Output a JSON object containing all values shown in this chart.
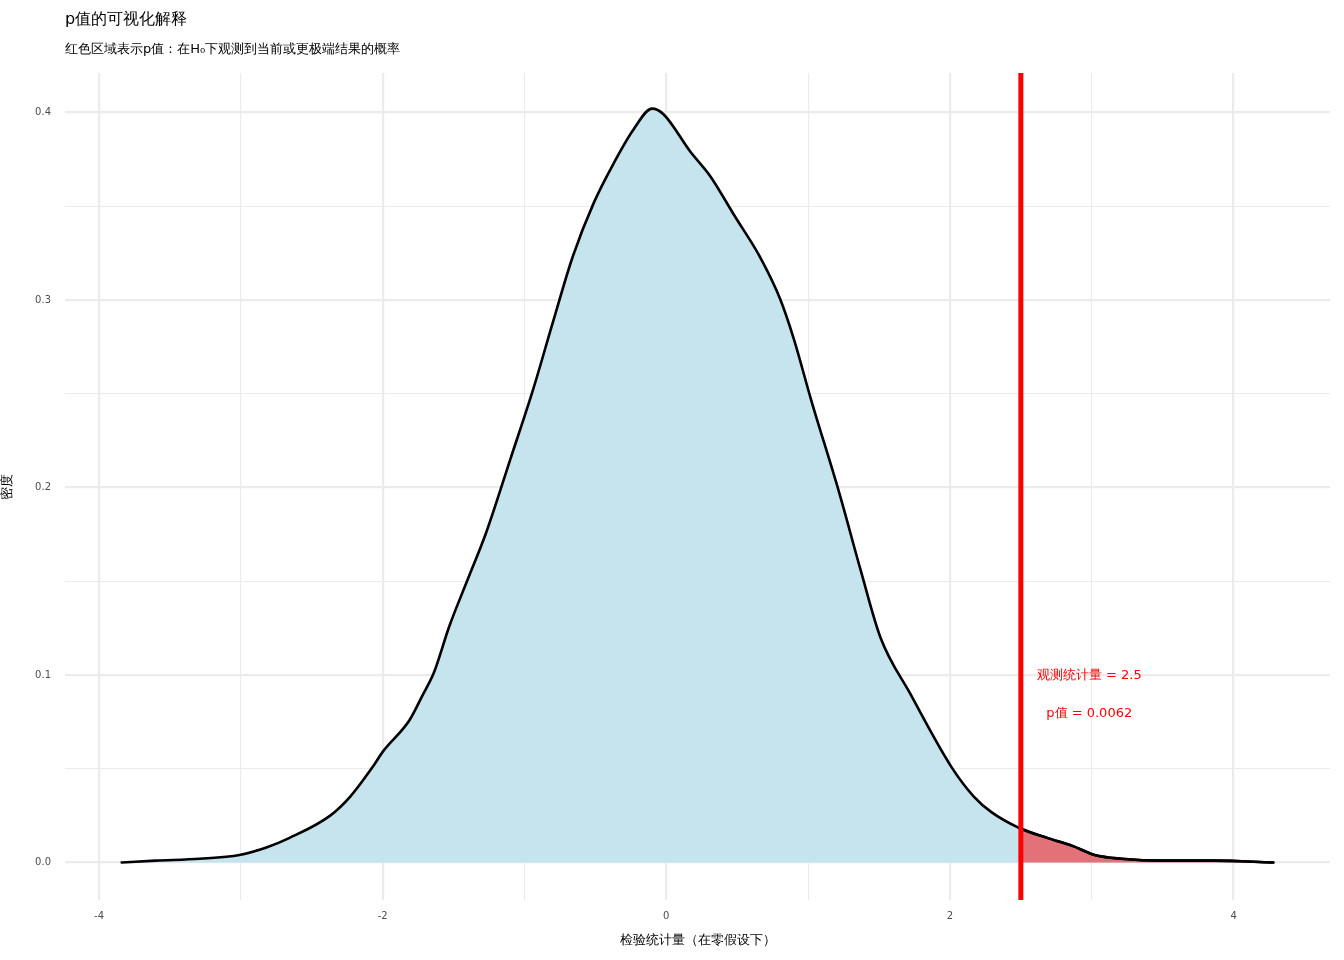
{
  "chart_data": {
    "type": "area",
    "title": "p值的可视化解释",
    "subtitle": "红色区域表示p值：在H₀下观测到当前或更极端结果的概率",
    "xlabel": "检验统计量（在零假设下）",
    "ylabel": "密度",
    "series": [
      {
        "color": "#e27277",
        "x": [
          2.5,
          2.69,
          2.86,
          3.02,
          3.21,
          3.51,
          3.87,
          4.28
        ],
        "values": [
          0.018,
          0.013,
          0.009,
          0.004,
          0.002,
          0.001,
          0.001,
          0
        ]
      },
      {
        "color": "#c6e4ee",
        "x": [
          -3.84,
          -3.6,
          -3.29,
          -3.01,
          -2.82,
          -2.66,
          -2.37,
          -2.23,
          -2.07,
          -2.0,
          -1.81,
          -1.72,
          -1.64,
          -1.53,
          -1.4,
          -1.27,
          -1.1,
          -0.94,
          -0.8,
          -0.66,
          -0.51,
          -0.37,
          -0.23,
          -0.1,
          -0.02,
          0.17,
          0.31,
          0.48,
          0.66,
          0.8,
          0.9,
          1.02,
          1.22,
          1.37,
          1.51,
          1.72,
          2.01,
          2.17,
          2.29,
          2.5,
          2.69,
          2.86,
          3.02,
          3.21,
          3.51,
          3.87,
          4.28
        ],
        "values": [
          0,
          0.001,
          0.002,
          0.004,
          0.008,
          0.013,
          0.025,
          0.035,
          0.051,
          0.059,
          0.076,
          0.089,
          0.101,
          0.126,
          0.151,
          0.176,
          0.215,
          0.252,
          0.288,
          0.323,
          0.352,
          0.373,
          0.391,
          0.402,
          0.399,
          0.379,
          0.366,
          0.345,
          0.323,
          0.301,
          0.279,
          0.247,
          0.197,
          0.156,
          0.12,
          0.09,
          0.051,
          0.035,
          0.027,
          0.018,
          0.013,
          0.009,
          0.004,
          0.002,
          0.001,
          0.001,
          0
        ]
      }
    ],
    "line_style": "solid",
    "xlim": [
      -4.24,
      4.68
    ],
    "xticks": [
      -4,
      {
        "value": -3,
        "label": null
      },
      -2,
      {
        "value": -1,
        "label": null
      },
      0,
      {
        "value": 1,
        "label": null
      },
      2,
      {
        "value": 3,
        "label": null
      },
      4
    ],
    "ylim": [
      -0.02,
      0.421
    ],
    "yticks": [
      {
        "value": 0,
        "label": "0.0"
      },
      {
        "value": 0.05,
        "label": null
      },
      0.1,
      {
        "value": 0.15,
        "label": null
      },
      0.2,
      {
        "value": 0.25,
        "label": null
      },
      0.3,
      {
        "value": 0.35,
        "label": null
      },
      0.4
    ],
    "grid": true,
    "ref_lines": [
      {
        "axis": "x",
        "value": 2.5,
        "color": "#ff0000",
        "label": "观测统计量 = 2.5"
      }
    ],
    "annotations": [
      "p值 = 0.0062"
    ]
  }
}
